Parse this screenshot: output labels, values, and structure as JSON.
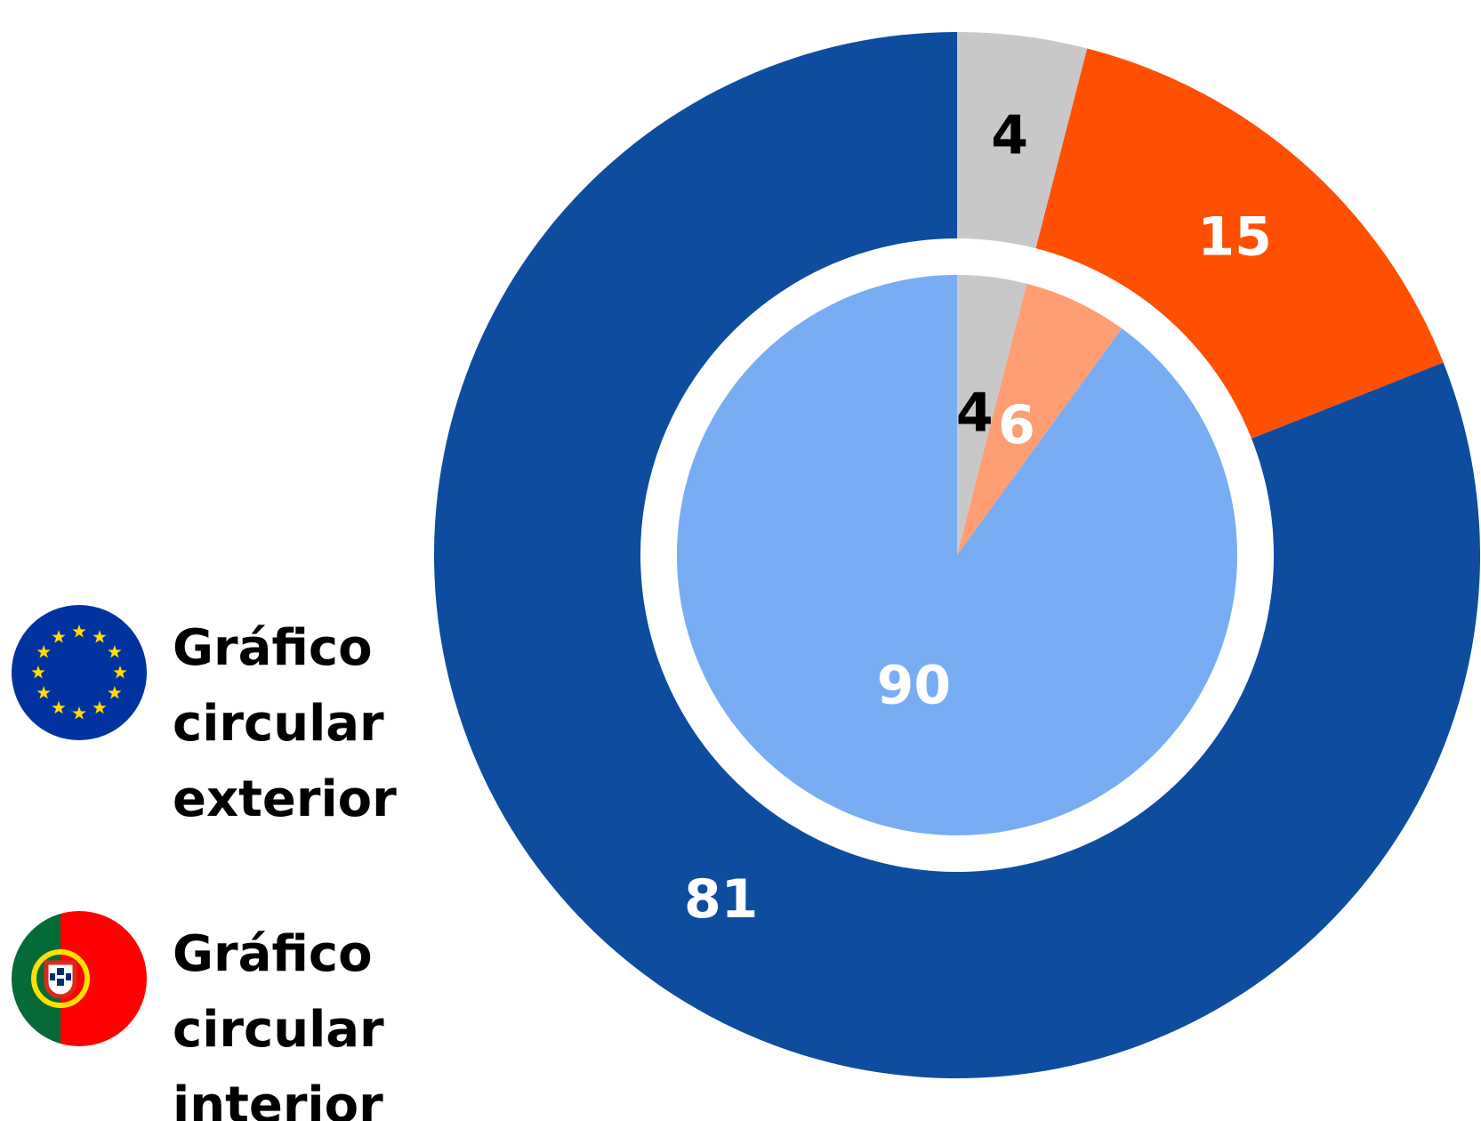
{
  "chart_data": {
    "type": "pie",
    "series": [
      {
        "name": "Gráfico circular exterior",
        "values": [
          4,
          15,
          81
        ],
        "colors": [
          "#c8c8c8",
          "#fe5000",
          "#0e4c9f"
        ],
        "label_colors": [
          "#000000",
          "#ffffff",
          "#ffffff"
        ]
      },
      {
        "name": "Gráfico circular interior",
        "values": [
          4,
          6,
          90
        ],
        "colors": [
          "#c8c8c8",
          "#ff9e72",
          "#78adf4"
        ],
        "label_colors": [
          "#000000",
          "#ffffff",
          "#ffffff"
        ]
      }
    ]
  }
}
